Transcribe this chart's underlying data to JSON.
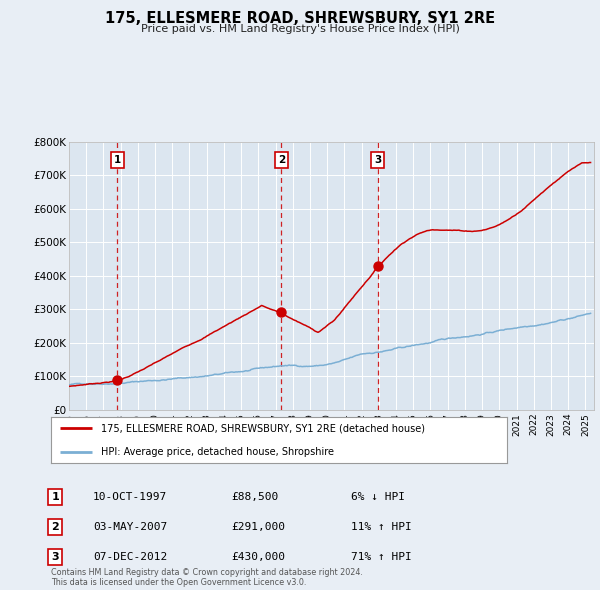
{
  "title": "175, ELLESMERE ROAD, SHREWSBURY, SY1 2RE",
  "subtitle": "Price paid vs. HM Land Registry's House Price Index (HPI)",
  "bg_color": "#e8eef5",
  "plot_bg_color": "#dce6f0",
  "grid_color": "#ffffff",
  "red_line_color": "#cc0000",
  "blue_line_color": "#7bafd4",
  "ylim": [
    0,
    800000
  ],
  "yticks": [
    0,
    100000,
    200000,
    300000,
    400000,
    500000,
    600000,
    700000,
    800000
  ],
  "sale_years": [
    1997.792,
    2007.336,
    2012.925
  ],
  "sale_prices": [
    88500,
    291000,
    430000
  ],
  "sale_labels": [
    "1",
    "2",
    "3"
  ],
  "legend_line1": "175, ELLESMERE ROAD, SHREWSBURY, SY1 2RE (detached house)",
  "legend_line2": "HPI: Average price, detached house, Shropshire",
  "table_rows": [
    {
      "num": "1",
      "date": "10-OCT-1997",
      "price": "£88,500",
      "change": "6% ↓ HPI"
    },
    {
      "num": "2",
      "date": "03-MAY-2007",
      "price": "£291,000",
      "change": "11% ↑ HPI"
    },
    {
      "num": "3",
      "date": "07-DEC-2012",
      "price": "£430,000",
      "change": "71% ↑ HPI"
    }
  ],
  "footer": "Contains HM Land Registry data © Crown copyright and database right 2024.\nThis data is licensed under the Open Government Licence v3.0.",
  "xstart": 1995.0,
  "xend": 2025.5
}
